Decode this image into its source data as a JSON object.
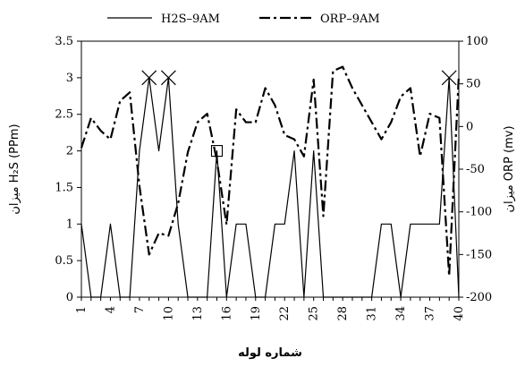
{
  "chart_data": {
    "type": "line",
    "legend": {
      "placement": "top",
      "entries": [
        {
          "label": "H2S–9AM",
          "style": "solid"
        },
        {
          "label": "ORP–9AM",
          "style": "dash-dot"
        }
      ]
    },
    "xlabel": "شماره لوله",
    "ylabel": "میزان H₂S (PPm)",
    "y2label": "میزان ORP (mv)",
    "x": [
      1,
      2,
      3,
      4,
      5,
      6,
      7,
      8,
      9,
      10,
      11,
      12,
      13,
      14,
      15,
      16,
      17,
      18,
      19,
      20,
      21,
      22,
      23,
      24,
      25,
      26,
      27,
      28,
      29,
      30,
      31,
      32,
      33,
      34,
      35,
      36,
      37,
      38,
      39,
      40
    ],
    "x_ticks": [
      1,
      4,
      7,
      10,
      13,
      16,
      19,
      22,
      25,
      28,
      31,
      34,
      37,
      40
    ],
    "x_tick_labels": [
      "1",
      "4",
      "7",
      "10",
      "13",
      "16",
      "19",
      "22",
      "25",
      "28",
      "31",
      "34",
      "37",
      "40"
    ],
    "ylim": [
      0,
      3.5
    ],
    "y_ticks": [
      0,
      0.5,
      1,
      1.5,
      2,
      2.5,
      3,
      3.5
    ],
    "y_tick_labels": [
      "0",
      "0.5",
      "1",
      "1.5",
      "2",
      "2.5",
      "3",
      "3.5"
    ],
    "y2lim": [
      -200,
      100
    ],
    "y2_ticks": [
      -200,
      -150,
      -100,
      -50,
      0,
      50,
      100
    ],
    "y2_tick_labels": [
      "-200",
      "-150",
      "-100",
      "-50",
      "0",
      "50",
      "100"
    ],
    "grid": false,
    "series": [
      {
        "name": "H2S–9AM",
        "axis": "left",
        "style": "solid",
        "values": [
          1,
          0,
          0,
          1,
          0,
          0,
          2,
          3,
          2,
          3,
          1,
          0,
          0,
          0,
          2,
          0,
          1,
          1,
          0,
          0,
          1,
          1,
          2,
          0,
          2,
          0,
          0,
          0,
          0,
          0,
          0,
          1,
          1,
          0,
          1,
          1,
          1,
          1,
          3,
          0
        ]
      },
      {
        "name": "ORP–9AM",
        "axis": "right",
        "style": "dash-dot",
        "values": [
          -25,
          10,
          -5,
          -15,
          30,
          40,
          -70,
          -150,
          -125,
          -128,
          -90,
          -30,
          5,
          15,
          -40,
          -115,
          20,
          5,
          5,
          45,
          25,
          -10,
          -15,
          -35,
          55,
          -105,
          65,
          70,
          45,
          25,
          5,
          -15,
          5,
          35,
          45,
          -35,
          15,
          10,
          -175,
          60
        ]
      }
    ],
    "markers": [
      {
        "x": 8,
        "y": 3,
        "axis": "left",
        "shape": "x"
      },
      {
        "x": 10,
        "y": 3,
        "axis": "left",
        "shape": "x"
      },
      {
        "x": 39,
        "y": 3,
        "axis": "left",
        "shape": "x"
      },
      {
        "x": 15,
        "y": 2,
        "axis": "left",
        "shape": "square"
      }
    ]
  }
}
